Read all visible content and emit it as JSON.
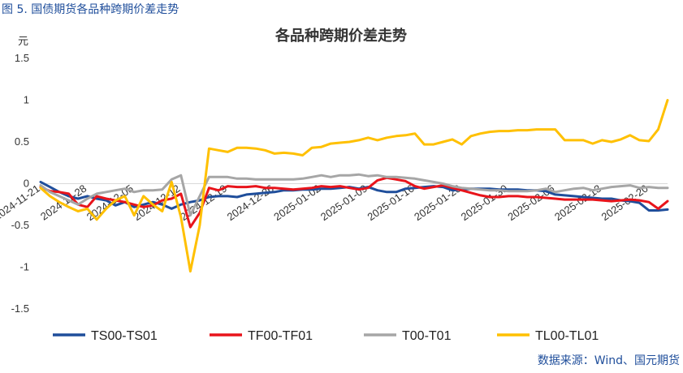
{
  "figure_caption": "图 5. 国债期货各品种跨期价差走势",
  "source_note": "数据来源：Wind、国元期货",
  "chart_data": {
    "type": "line",
    "title": "各品种跨期价差走势",
    "ylabel": "元",
    "xlabel": "",
    "ylim": [
      -1.5,
      1.5
    ],
    "yticks": [
      1.5,
      1,
      0.5,
      0,
      -0.5,
      -1,
      -1.5
    ],
    "ytick_labels": [
      "1.5",
      "1",
      "0.5",
      "0",
      "-0.5",
      "-1",
      "-1.5"
    ],
    "xticks": [
      {
        "x": 0,
        "label": "2024-11-21"
      },
      {
        "x": 5,
        "label": "2024-11-28"
      },
      {
        "x": 10,
        "label": "2024-12-05"
      },
      {
        "x": 15,
        "label": "2024-12-12"
      },
      {
        "x": 20,
        "label": "2024-12-19"
      },
      {
        "x": 25,
        "label": "2024-12-26"
      },
      {
        "x": 30,
        "label": "2025-01-02"
      },
      {
        "x": 35,
        "label": "2025-01-09"
      },
      {
        "x": 40,
        "label": "2025-01-16"
      },
      {
        "x": 45,
        "label": "2025-01-23"
      },
      {
        "x": 50,
        "label": "2025-01-30"
      },
      {
        "x": 55,
        "label": "2025-02-06"
      },
      {
        "x": 60,
        "label": "2025-02-13"
      },
      {
        "x": 65,
        "label": "2025-02-20"
      }
    ],
    "legend_position": "bottom",
    "series": [
      {
        "name": "TS00-TS01",
        "color": "#1f4e9b",
        "points": [
          [
            0,
            0.02
          ],
          [
            1,
            -0.04
          ],
          [
            2,
            -0.1
          ],
          [
            3,
            -0.15
          ],
          [
            4,
            -0.18
          ],
          [
            5,
            -0.15
          ],
          [
            6,
            -0.18
          ],
          [
            7,
            -0.2
          ],
          [
            8,
            -0.26
          ],
          [
            9,
            -0.22
          ],
          [
            10,
            -0.28
          ],
          [
            11,
            -0.25
          ],
          [
            12,
            -0.22
          ],
          [
            13,
            -0.25
          ],
          [
            14,
            -0.3
          ],
          [
            15,
            -0.25
          ],
          [
            16,
            -0.22
          ],
          [
            17,
            -0.2
          ],
          [
            18,
            -0.16
          ],
          [
            19,
            -0.15
          ],
          [
            20,
            -0.15
          ],
          [
            21,
            -0.16
          ],
          [
            22,
            -0.13
          ],
          [
            23,
            -0.12
          ],
          [
            24,
            -0.11
          ],
          [
            25,
            -0.1
          ],
          [
            26,
            -0.08
          ],
          [
            27,
            -0.08
          ],
          [
            28,
            -0.07
          ],
          [
            29,
            -0.07
          ],
          [
            30,
            -0.06
          ],
          [
            31,
            -0.06
          ],
          [
            32,
            -0.05
          ],
          [
            33,
            -0.04
          ],
          [
            34,
            -0.06
          ],
          [
            35,
            -0.04
          ],
          [
            36,
            -0.08
          ],
          [
            37,
            -0.1
          ],
          [
            38,
            -0.1
          ],
          [
            39,
            -0.06
          ],
          [
            40,
            -0.05
          ],
          [
            41,
            -0.04
          ],
          [
            42,
            -0.03
          ],
          [
            43,
            -0.04
          ],
          [
            44,
            -0.08
          ],
          [
            45,
            -0.07
          ],
          [
            46,
            -0.06
          ],
          [
            47,
            -0.06
          ],
          [
            48,
            -0.06
          ],
          [
            49,
            -0.07
          ],
          [
            50,
            -0.07
          ],
          [
            51,
            -0.07
          ],
          [
            52,
            -0.08
          ],
          [
            53,
            -0.08
          ],
          [
            54,
            -0.09
          ],
          [
            55,
            -0.13
          ],
          [
            56,
            -0.14
          ],
          [
            57,
            -0.15
          ],
          [
            58,
            -0.16
          ],
          [
            59,
            -0.17
          ],
          [
            60,
            -0.18
          ],
          [
            61,
            -0.18
          ],
          [
            62,
            -0.2
          ],
          [
            63,
            -0.21
          ],
          [
            64,
            -0.23
          ],
          [
            65,
            -0.32
          ],
          [
            66,
            -0.32
          ],
          [
            67,
            -0.31
          ]
        ]
      },
      {
        "name": "TF00-TF01",
        "color": "#e8141b",
        "points": [
          [
            0,
            -0.04
          ],
          [
            1,
            -0.09
          ],
          [
            2,
            -0.1
          ],
          [
            3,
            -0.12
          ],
          [
            4,
            -0.25
          ],
          [
            5,
            -0.28
          ],
          [
            6,
            -0.15
          ],
          [
            7,
            -0.18
          ],
          [
            8,
            -0.2
          ],
          [
            9,
            -0.22
          ],
          [
            10,
            -0.25
          ],
          [
            11,
            -0.28
          ],
          [
            12,
            -0.26
          ],
          [
            13,
            -0.2
          ],
          [
            14,
            -0.18
          ],
          [
            15,
            -0.12
          ],
          [
            16,
            -0.52
          ],
          [
            17,
            -0.35
          ],
          [
            18,
            -0.05
          ],
          [
            19,
            -0.08
          ],
          [
            20,
            -0.03
          ],
          [
            21,
            -0.04
          ],
          [
            22,
            -0.04
          ],
          [
            23,
            -0.03
          ],
          [
            24,
            -0.05
          ],
          [
            25,
            -0.05
          ],
          [
            26,
            -0.06
          ],
          [
            27,
            -0.07
          ],
          [
            28,
            -0.06
          ],
          [
            29,
            -0.05
          ],
          [
            30,
            -0.03
          ],
          [
            31,
            -0.04
          ],
          [
            32,
            -0.03
          ],
          [
            33,
            -0.05
          ],
          [
            34,
            -0.07
          ],
          [
            35,
            -0.05
          ],
          [
            36,
            0.04
          ],
          [
            37,
            0.07
          ],
          [
            38,
            0.05
          ],
          [
            39,
            0.03
          ],
          [
            40,
            -0.03
          ],
          [
            41,
            -0.06
          ],
          [
            42,
            -0.04
          ],
          [
            43,
            -0.02
          ],
          [
            44,
            -0.05
          ],
          [
            45,
            -0.08
          ],
          [
            46,
            -0.11
          ],
          [
            47,
            -0.14
          ],
          [
            48,
            -0.16
          ],
          [
            49,
            -0.16
          ],
          [
            50,
            -0.15
          ],
          [
            51,
            -0.15
          ],
          [
            52,
            -0.16
          ],
          [
            53,
            -0.16
          ],
          [
            54,
            -0.17
          ],
          [
            55,
            -0.18
          ],
          [
            56,
            -0.19
          ],
          [
            57,
            -0.19
          ],
          [
            58,
            -0.19
          ],
          [
            59,
            -0.19
          ],
          [
            60,
            -0.2
          ],
          [
            61,
            -0.21
          ],
          [
            62,
            -0.2
          ],
          [
            63,
            -0.19
          ],
          [
            64,
            -0.2
          ],
          [
            65,
            -0.22
          ],
          [
            66,
            -0.3
          ],
          [
            67,
            -0.21
          ]
        ]
      },
      {
        "name": "T00-T01",
        "color": "#a6a6a6",
        "points": [
          [
            0,
            -0.02
          ],
          [
            1,
            -0.1
          ],
          [
            2,
            -0.15
          ],
          [
            3,
            -0.2
          ],
          [
            4,
            -0.25
          ],
          [
            5,
            -0.18
          ],
          [
            6,
            -0.12
          ],
          [
            7,
            -0.1
          ],
          [
            8,
            -0.08
          ],
          [
            9,
            -0.06
          ],
          [
            10,
            -0.1
          ],
          [
            11,
            -0.08
          ],
          [
            12,
            -0.08
          ],
          [
            13,
            -0.07
          ],
          [
            14,
            0.05
          ],
          [
            15,
            0.1
          ],
          [
            16,
            -0.38
          ],
          [
            17,
            -0.15
          ],
          [
            18,
            0.08
          ],
          [
            19,
            0.08
          ],
          [
            20,
            0.08
          ],
          [
            21,
            0.06
          ],
          [
            22,
            0.06
          ],
          [
            23,
            0.05
          ],
          [
            24,
            0.05
          ],
          [
            25,
            0.05
          ],
          [
            26,
            0.05
          ],
          [
            27,
            0.05
          ],
          [
            28,
            0.06
          ],
          [
            29,
            0.08
          ],
          [
            30,
            0.1
          ],
          [
            31,
            0.08
          ],
          [
            32,
            0.1
          ],
          [
            33,
            0.1
          ],
          [
            34,
            0.11
          ],
          [
            35,
            0.09
          ],
          [
            36,
            0.1
          ],
          [
            37,
            0.08
          ],
          [
            38,
            0.08
          ],
          [
            39,
            0.07
          ],
          [
            40,
            0.06
          ],
          [
            41,
            0.04
          ],
          [
            42,
            0.02
          ],
          [
            43,
            0.0
          ],
          [
            44,
            -0.03
          ],
          [
            45,
            -0.05
          ],
          [
            46,
            -0.06
          ],
          [
            47,
            -0.07
          ],
          [
            48,
            -0.08
          ],
          [
            49,
            -0.08
          ],
          [
            50,
            -0.09
          ],
          [
            51,
            -0.09
          ],
          [
            52,
            -0.09
          ],
          [
            53,
            -0.08
          ],
          [
            54,
            -0.06
          ],
          [
            55,
            -0.1
          ],
          [
            56,
            -0.08
          ],
          [
            57,
            -0.06
          ],
          [
            58,
            -0.05
          ],
          [
            59,
            -0.08
          ],
          [
            60,
            -0.06
          ],
          [
            61,
            -0.04
          ],
          [
            62,
            -0.03
          ],
          [
            63,
            -0.02
          ],
          [
            64,
            -0.05
          ],
          [
            65,
            -0.04
          ],
          [
            66,
            -0.05
          ],
          [
            67,
            -0.05
          ]
        ]
      },
      {
        "name": "TL00-TL01",
        "color": "#ffc000",
        "points": [
          [
            0,
            -0.05
          ],
          [
            1,
            -0.15
          ],
          [
            2,
            -0.22
          ],
          [
            3,
            -0.28
          ],
          [
            4,
            -0.33
          ],
          [
            5,
            -0.3
          ],
          [
            6,
            -0.43
          ],
          [
            7,
            -0.3
          ],
          [
            8,
            -0.2
          ],
          [
            9,
            -0.15
          ],
          [
            10,
            -0.38
          ],
          [
            11,
            -0.15
          ],
          [
            12,
            -0.25
          ],
          [
            13,
            -0.33
          ],
          [
            14,
            0.02
          ],
          [
            15,
            -0.4
          ],
          [
            16,
            -1.05
          ],
          [
            17,
            -0.5
          ],
          [
            18,
            0.42
          ],
          [
            19,
            0.4
          ],
          [
            20,
            0.38
          ],
          [
            21,
            0.43
          ],
          [
            22,
            0.43
          ],
          [
            23,
            0.42
          ],
          [
            24,
            0.4
          ],
          [
            25,
            0.36
          ],
          [
            26,
            0.37
          ],
          [
            27,
            0.36
          ],
          [
            28,
            0.34
          ],
          [
            29,
            0.43
          ],
          [
            30,
            0.44
          ],
          [
            31,
            0.48
          ],
          [
            32,
            0.49
          ],
          [
            33,
            0.5
          ],
          [
            34,
            0.52
          ],
          [
            35,
            0.55
          ],
          [
            36,
            0.52
          ],
          [
            37,
            0.55
          ],
          [
            38,
            0.57
          ],
          [
            39,
            0.58
          ],
          [
            40,
            0.6
          ],
          [
            41,
            0.47
          ],
          [
            42,
            0.47
          ],
          [
            43,
            0.5
          ],
          [
            44,
            0.53
          ],
          [
            45,
            0.47
          ],
          [
            46,
            0.57
          ],
          [
            47,
            0.6
          ],
          [
            48,
            0.62
          ],
          [
            49,
            0.63
          ],
          [
            50,
            0.63
          ],
          [
            51,
            0.64
          ],
          [
            52,
            0.64
          ],
          [
            53,
            0.65
          ],
          [
            54,
            0.65
          ],
          [
            55,
            0.65
          ],
          [
            56,
            0.52
          ],
          [
            57,
            0.52
          ],
          [
            58,
            0.52
          ],
          [
            59,
            0.48
          ],
          [
            60,
            0.52
          ],
          [
            61,
            0.5
          ],
          [
            62,
            0.53
          ],
          [
            63,
            0.58
          ],
          [
            64,
            0.52
          ],
          [
            65,
            0.51
          ],
          [
            66,
            0.65
          ],
          [
            67,
            1.0
          ]
        ]
      }
    ]
  }
}
